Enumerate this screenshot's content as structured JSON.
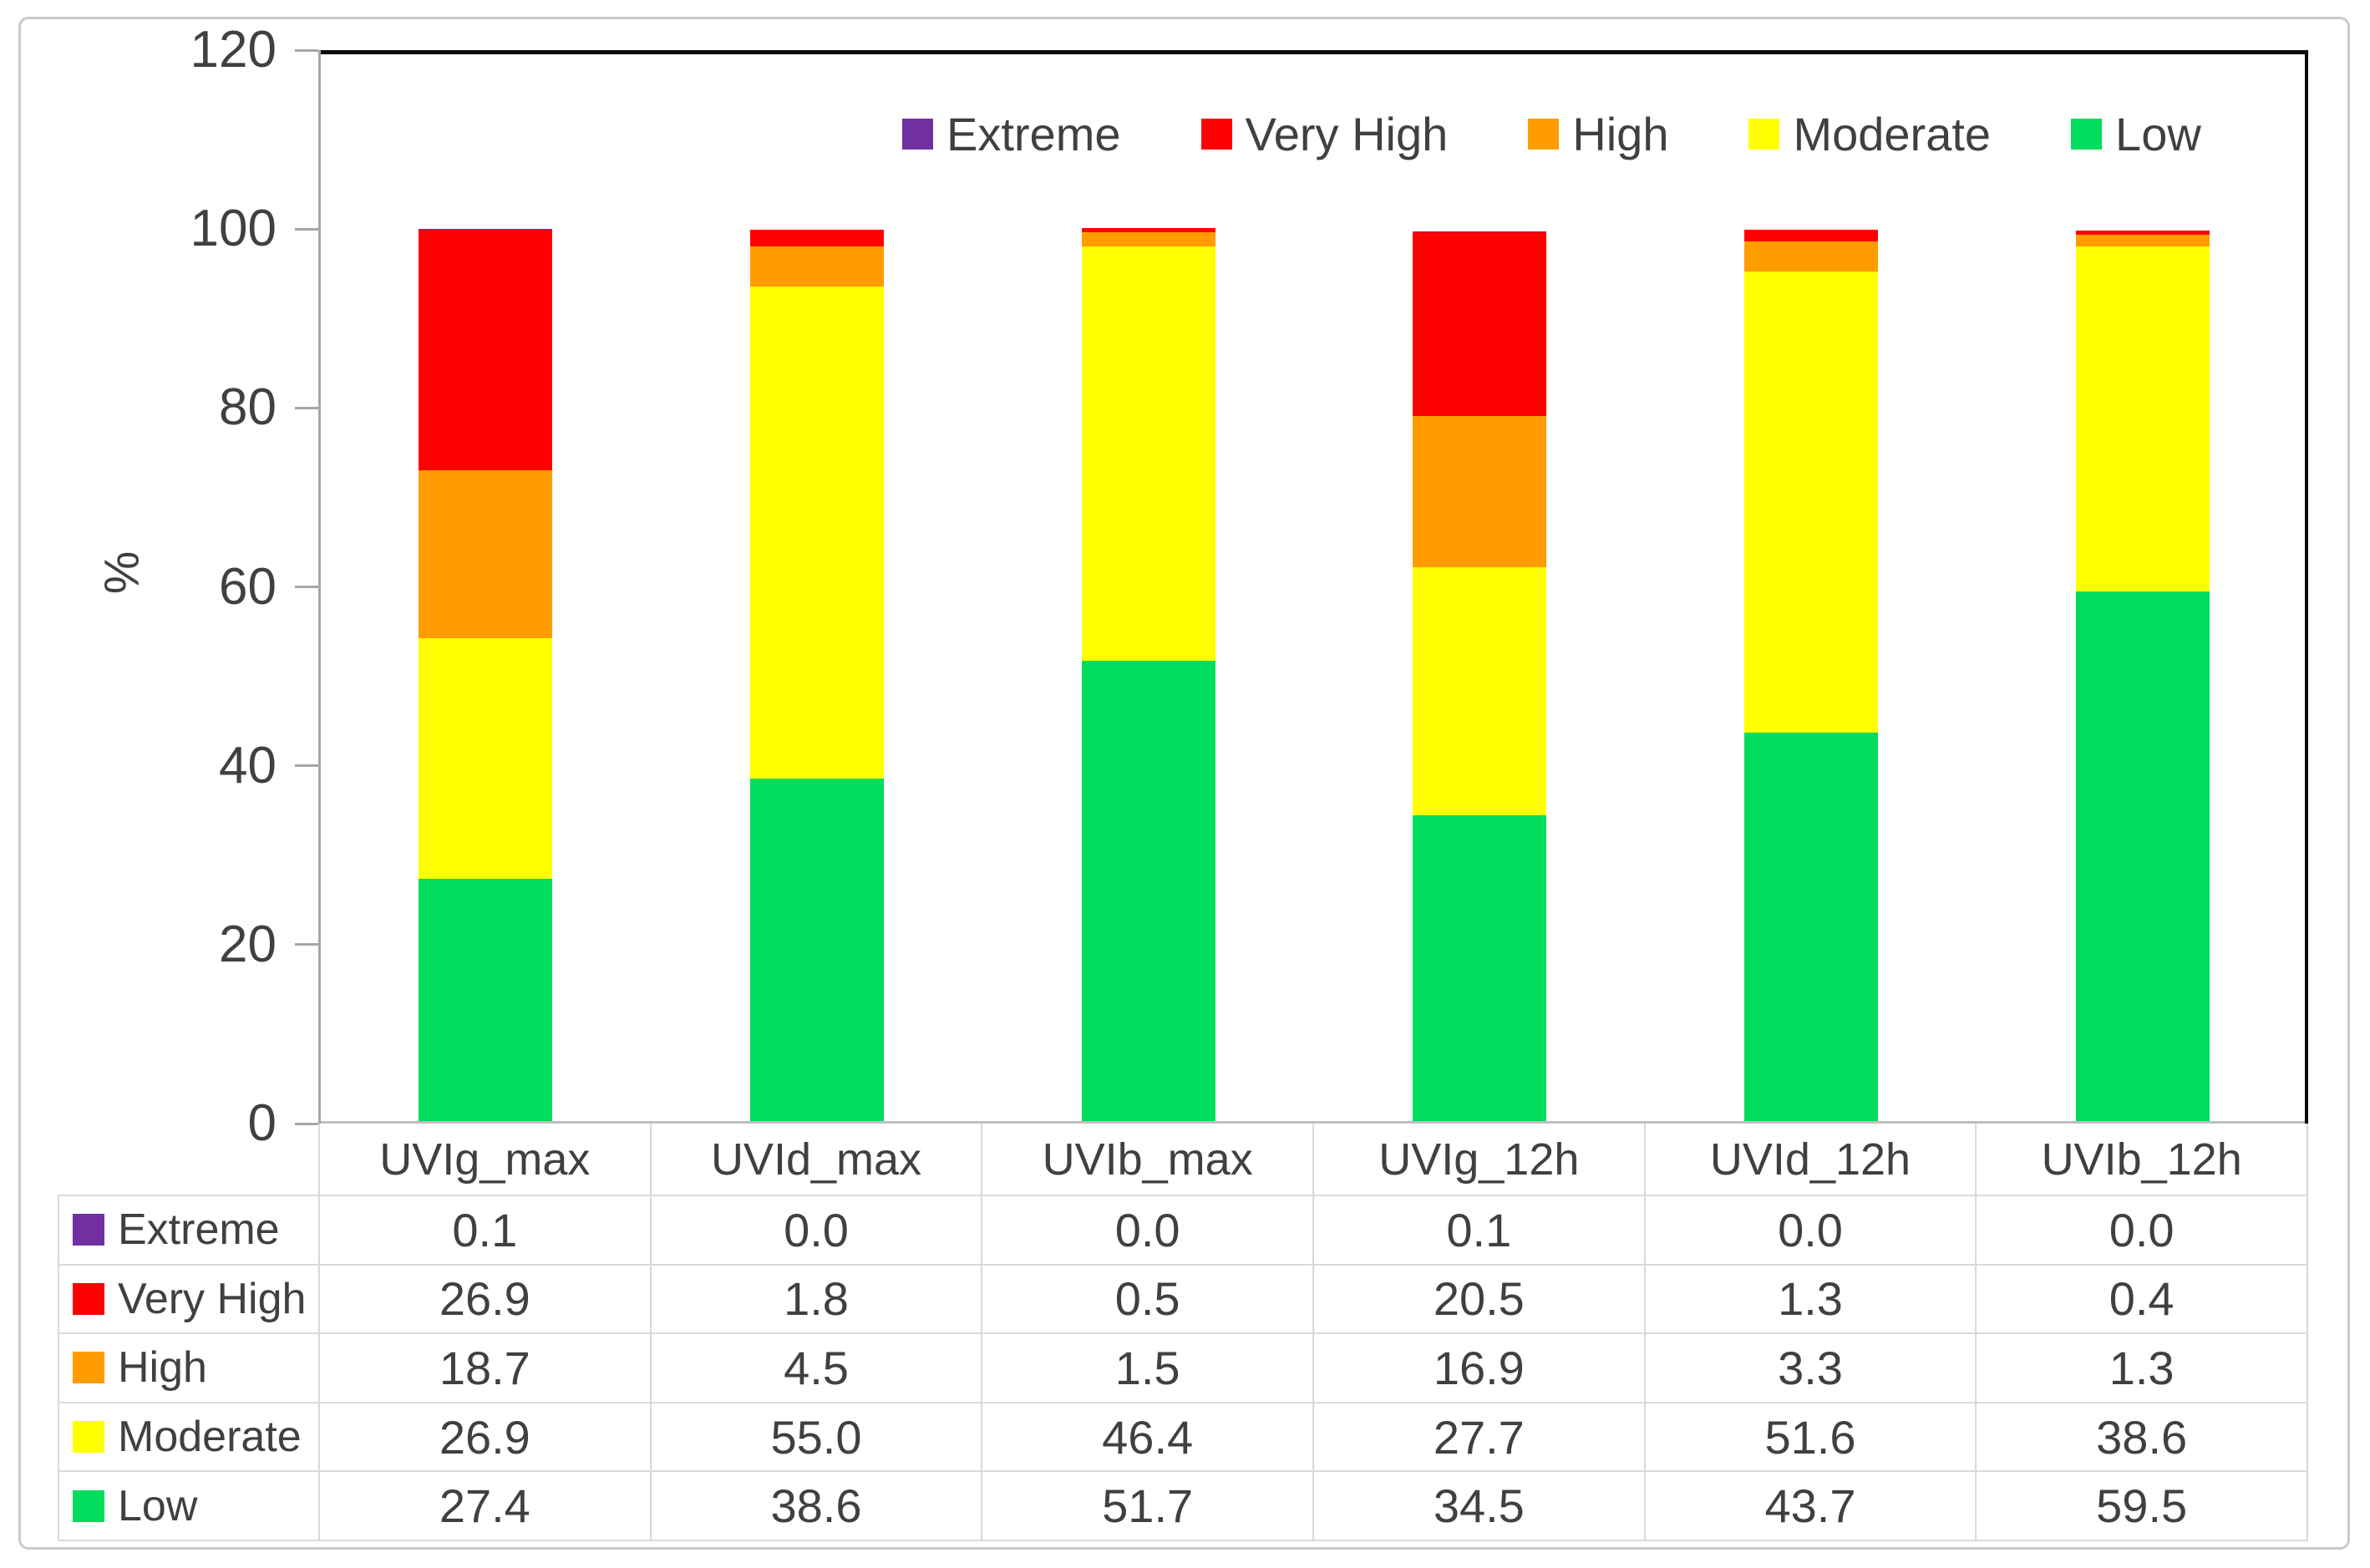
{
  "chart_data": {
    "type": "bar",
    "stacked": true,
    "title": "",
    "xlabel": "",
    "ylabel": "%",
    "ylim": [
      0,
      120
    ],
    "yticks": [
      0,
      20,
      40,
      60,
      80,
      100,
      120
    ],
    "grid": false,
    "legend_position": "top",
    "categories": [
      "UVIg_max",
      "UVId_max",
      "UVIb_max",
      "UVIg_12h",
      "UVId_12h",
      "UVIb_12h"
    ],
    "series": [
      {
        "name": "Extreme",
        "color": "#7030A0",
        "values": [
          0.1,
          0.0,
          0.0,
          0.1,
          0.0,
          0.0
        ]
      },
      {
        "name": "Very High",
        "color": "#FF0000",
        "values": [
          26.9,
          1.8,
          0.5,
          20.5,
          1.3,
          0.4
        ]
      },
      {
        "name": "High",
        "color": "#FF9C00",
        "values": [
          18.7,
          4.5,
          1.5,
          16.9,
          3.3,
          1.3
        ]
      },
      {
        "name": "Moderate",
        "color": "#FFFF00",
        "values": [
          26.9,
          55.0,
          46.4,
          27.7,
          51.6,
          38.6
        ]
      },
      {
        "name": "Low",
        "color": "#00DD5C",
        "values": [
          27.4,
          38.6,
          51.7,
          34.5,
          43.7,
          59.5
        ]
      }
    ],
    "colors": {
      "text": "#404040",
      "axis": "#A6A6A6",
      "plot_frame": "#0d0d0d",
      "table_border": "#D9D9D9",
      "figure_border": "#C9CACB"
    }
  }
}
